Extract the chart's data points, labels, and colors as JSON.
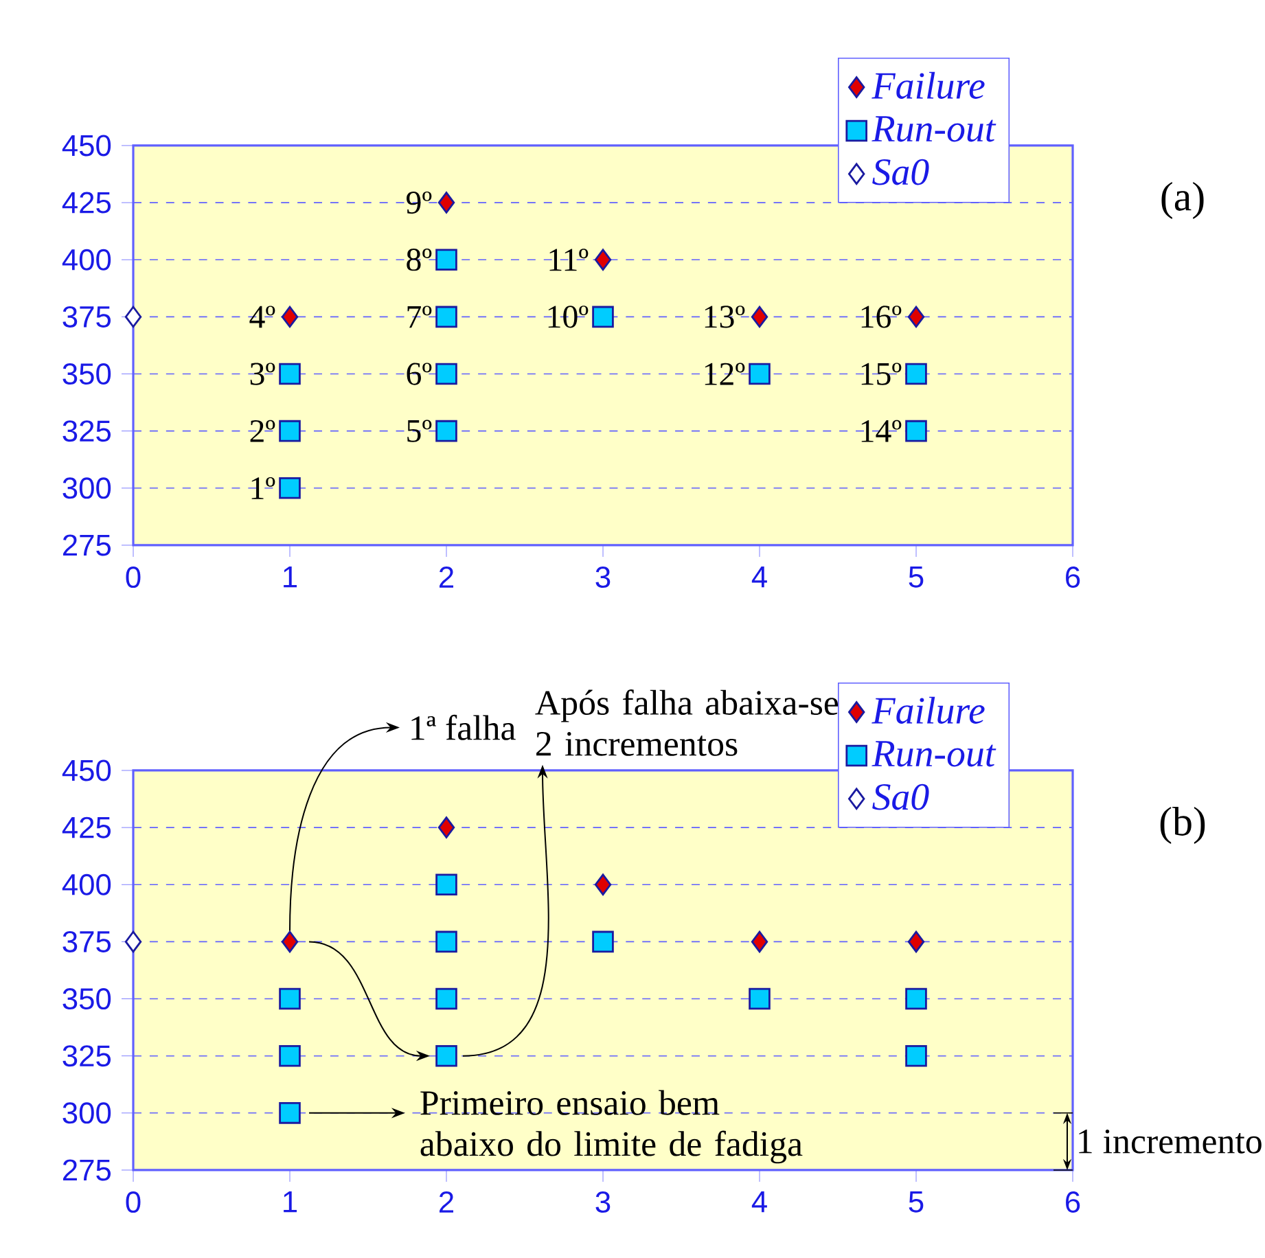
{
  "chart_data": [
    {
      "type": "scatter",
      "xlim": [
        0,
        6
      ],
      "ylim": [
        275,
        450
      ],
      "xticks": [
        0,
        1,
        2,
        3,
        4,
        5,
        6
      ],
      "yticks": [
        275,
        300,
        325,
        350,
        375,
        400,
        425,
        450
      ],
      "grid": "y",
      "legend": "top right",
      "series": [
        {
          "name": "Failure",
          "color": "#e00000",
          "marker": "diamond",
          "x": [
            1,
            2,
            3,
            4,
            5
          ],
          "values": [
            375,
            425,
            400,
            375,
            375
          ]
        },
        {
          "name": "Run-out",
          "color": "#00ccff",
          "marker": "square",
          "x": [
            1,
            1,
            1,
            2,
            2,
            2,
            2,
            3,
            4,
            5,
            5
          ],
          "values": [
            300,
            325,
            350,
            325,
            350,
            375,
            400,
            375,
            350,
            325,
            350
          ]
        },
        {
          "name": "Sa0",
          "color": "#ffffff",
          "marker": "diamond",
          "x": [
            0
          ],
          "values": [
            375
          ]
        }
      ],
      "annotations": [
        {
          "text": "1º",
          "x": 1,
          "y": 300
        },
        {
          "text": "2º",
          "x": 1,
          "y": 325
        },
        {
          "text": "3º",
          "x": 1,
          "y": 350
        },
        {
          "text": "4º",
          "x": 1,
          "y": 375
        },
        {
          "text": "5º",
          "x": 2,
          "y": 325
        },
        {
          "text": "6º",
          "x": 2,
          "y": 350
        },
        {
          "text": "7º",
          "x": 2,
          "y": 375
        },
        {
          "text": "8º",
          "x": 2,
          "y": 400
        },
        {
          "text": "9º",
          "x": 2,
          "y": 425
        },
        {
          "text": "10º",
          "x": 3,
          "y": 375
        },
        {
          "text": "11º",
          "x": 3,
          "y": 400
        },
        {
          "text": "12º",
          "x": 4,
          "y": 350
        },
        {
          "text": "13º",
          "x": 4,
          "y": 375
        },
        {
          "text": "14º",
          "x": 5,
          "y": 325
        },
        {
          "text": "15º",
          "x": 5,
          "y": 350
        },
        {
          "text": "16º",
          "x": 5,
          "y": 375
        },
        "(a)"
      ]
    },
    {
      "type": "scatter",
      "xlim": [
        0,
        6
      ],
      "ylim": [
        275,
        450
      ],
      "xticks": [
        0,
        1,
        2,
        3,
        4,
        5,
        6
      ],
      "yticks": [
        275,
        300,
        325,
        350,
        375,
        400,
        425,
        450
      ],
      "grid": "y",
      "legend": "top right",
      "series": [
        {
          "name": "Failure",
          "color": "#e00000",
          "marker": "diamond",
          "x": [
            1,
            2,
            3,
            4,
            5
          ],
          "values": [
            375,
            425,
            400,
            375,
            375
          ]
        },
        {
          "name": "Run-out",
          "color": "#00ccff",
          "marker": "square",
          "x": [
            1,
            1,
            1,
            2,
            2,
            2,
            2,
            3,
            4,
            5,
            5
          ],
          "values": [
            300,
            325,
            350,
            325,
            350,
            375,
            400,
            375,
            350,
            325,
            350
          ]
        },
        {
          "name": "Sa0",
          "color": "#ffffff",
          "marker": "diamond",
          "x": [
            0
          ],
          "values": [
            375
          ]
        }
      ],
      "annotations": [
        "1ª falha",
        "Após falha abaixa-se 2 incrementos",
        "Primeiro ensaio bem abaixo do limite de fadiga",
        "1 incremento",
        "(b)"
      ]
    }
  ]
}
